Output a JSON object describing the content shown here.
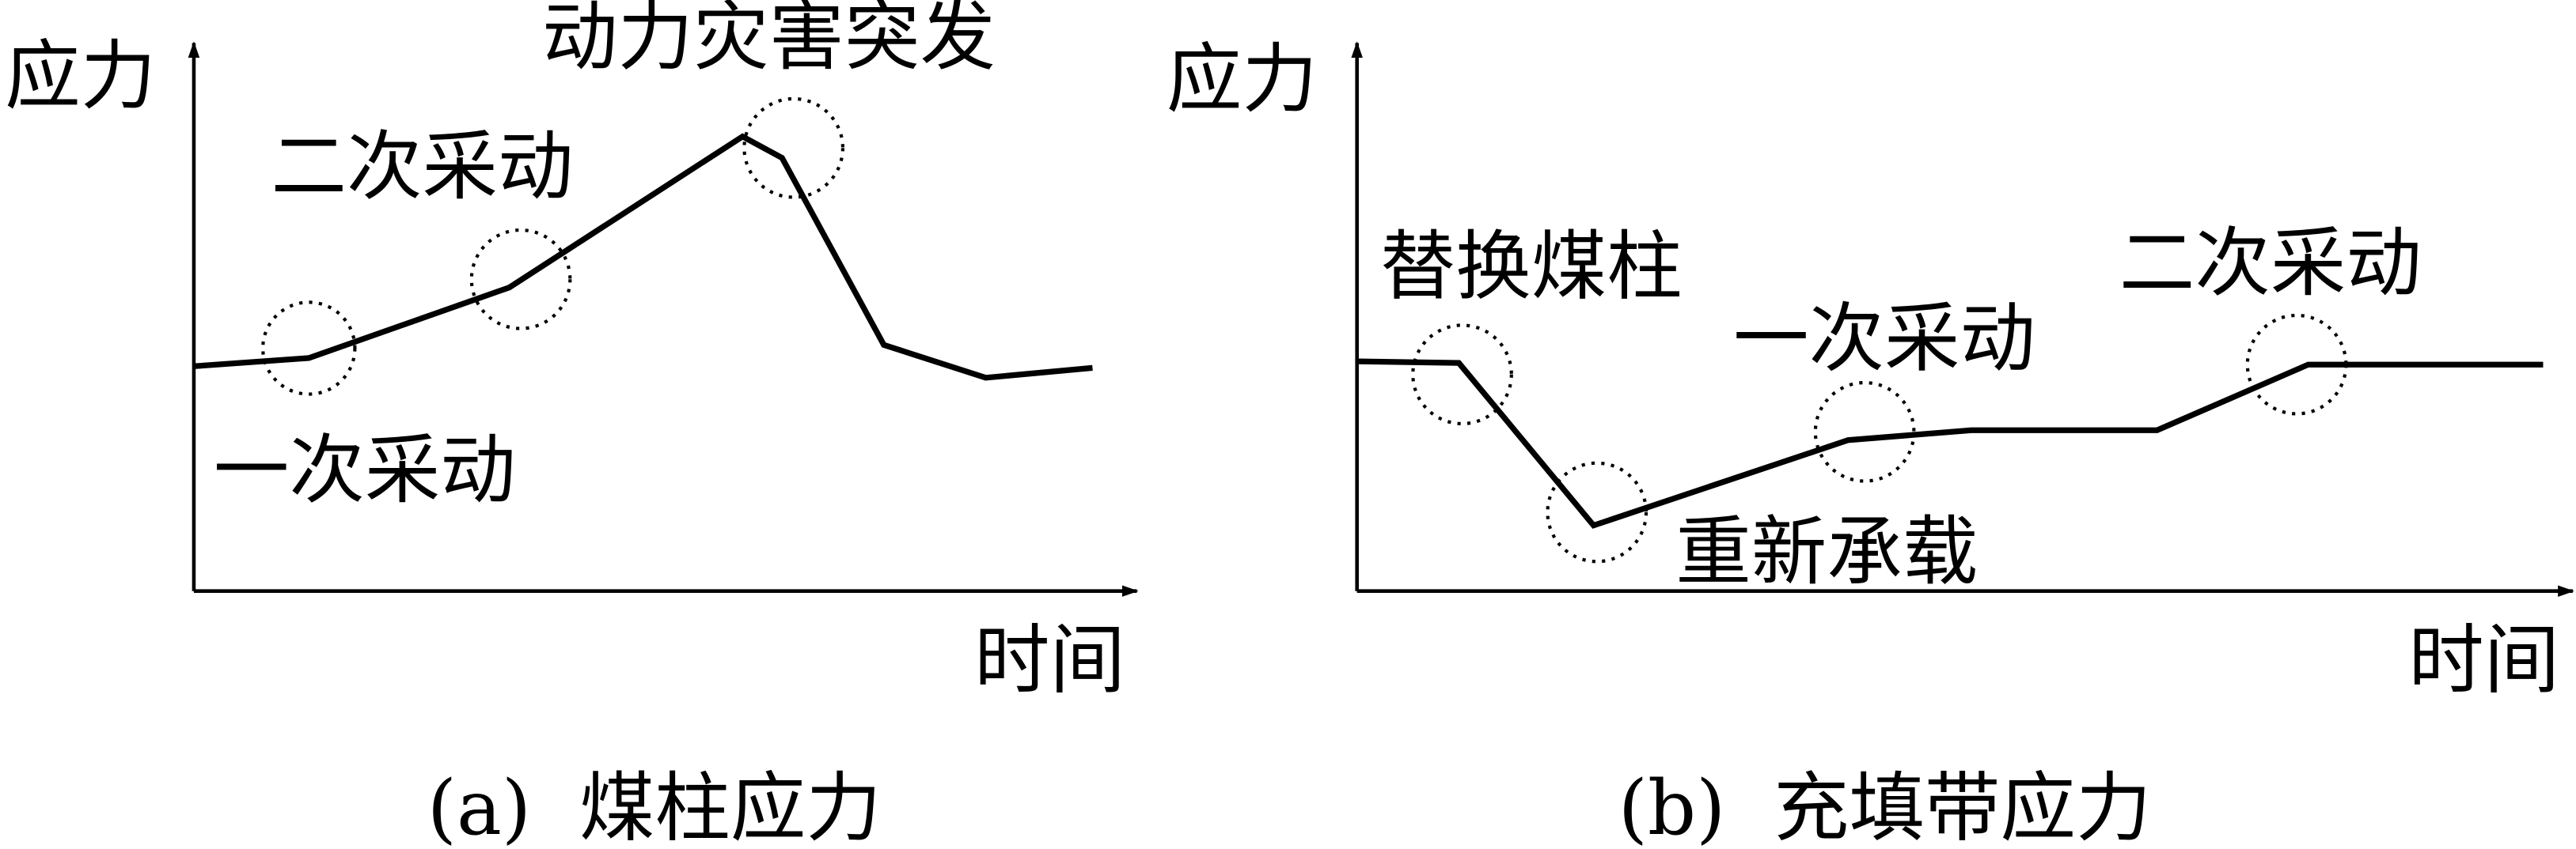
{
  "panels": [
    {
      "caption": "(a)  煤柱应力",
      "ylabel": "应力",
      "xlabel": "时间",
      "annotations": [
        "一次采动",
        "二次采动",
        "动力灾害突发"
      ]
    },
    {
      "caption": "(b)  充填带应力",
      "ylabel": "应力",
      "xlabel": "时间",
      "annotations": [
        "替换煤柱",
        "重新承载",
        "一次采动",
        "二次采动"
      ]
    }
  ]
}
